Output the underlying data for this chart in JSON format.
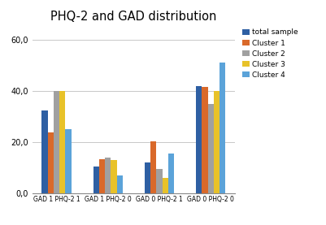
{
  "title": "PHQ-2 and GAD distribution",
  "categories": [
    "GAD 1 PHQ-2 1",
    "GAD 1 PHQ-2 0",
    "GAD 0 PHQ-2 1",
    "GAD 0 PHQ-2 0"
  ],
  "series": {
    "total sample": [
      32.5,
      10.5,
      12.0,
      42.0
    ],
    "Cluster 1": [
      24.0,
      13.5,
      20.5,
      41.5
    ],
    "Cluster 2": [
      40.0,
      14.0,
      9.5,
      35.0
    ],
    "Cluster 3": [
      40.0,
      13.0,
      6.0,
      40.0
    ],
    "Cluster 4": [
      25.0,
      7.0,
      15.5,
      51.0
    ]
  },
  "colors": {
    "total sample": "#2e5fa3",
    "Cluster 1": "#d9692a",
    "Cluster 2": "#a0a0a0",
    "Cluster 3": "#e8c229",
    "Cluster 4": "#5ba3d9"
  },
  "ylim": [
    0,
    65
  ],
  "yticks": [
    0,
    20,
    40,
    60
  ],
  "ytick_labels": [
    "0,0",
    "20,0",
    "40,0",
    "60,0"
  ],
  "background_color": "#ffffff",
  "grid_color": "#c8c8c8"
}
